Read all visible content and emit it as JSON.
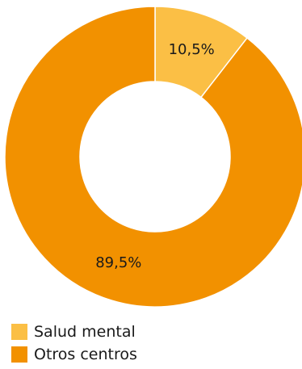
{
  "chart_data": {
    "type": "pie",
    "donut": true,
    "title": "",
    "legend_position": "bottom-left",
    "series": [
      {
        "name": "Salud mental",
        "value": 10.5,
        "label": "10,5%",
        "color": "#fbbf45"
      },
      {
        "name": "Otros centros",
        "value": 89.5,
        "label": "89,5%",
        "color": "#f29100"
      }
    ]
  }
}
